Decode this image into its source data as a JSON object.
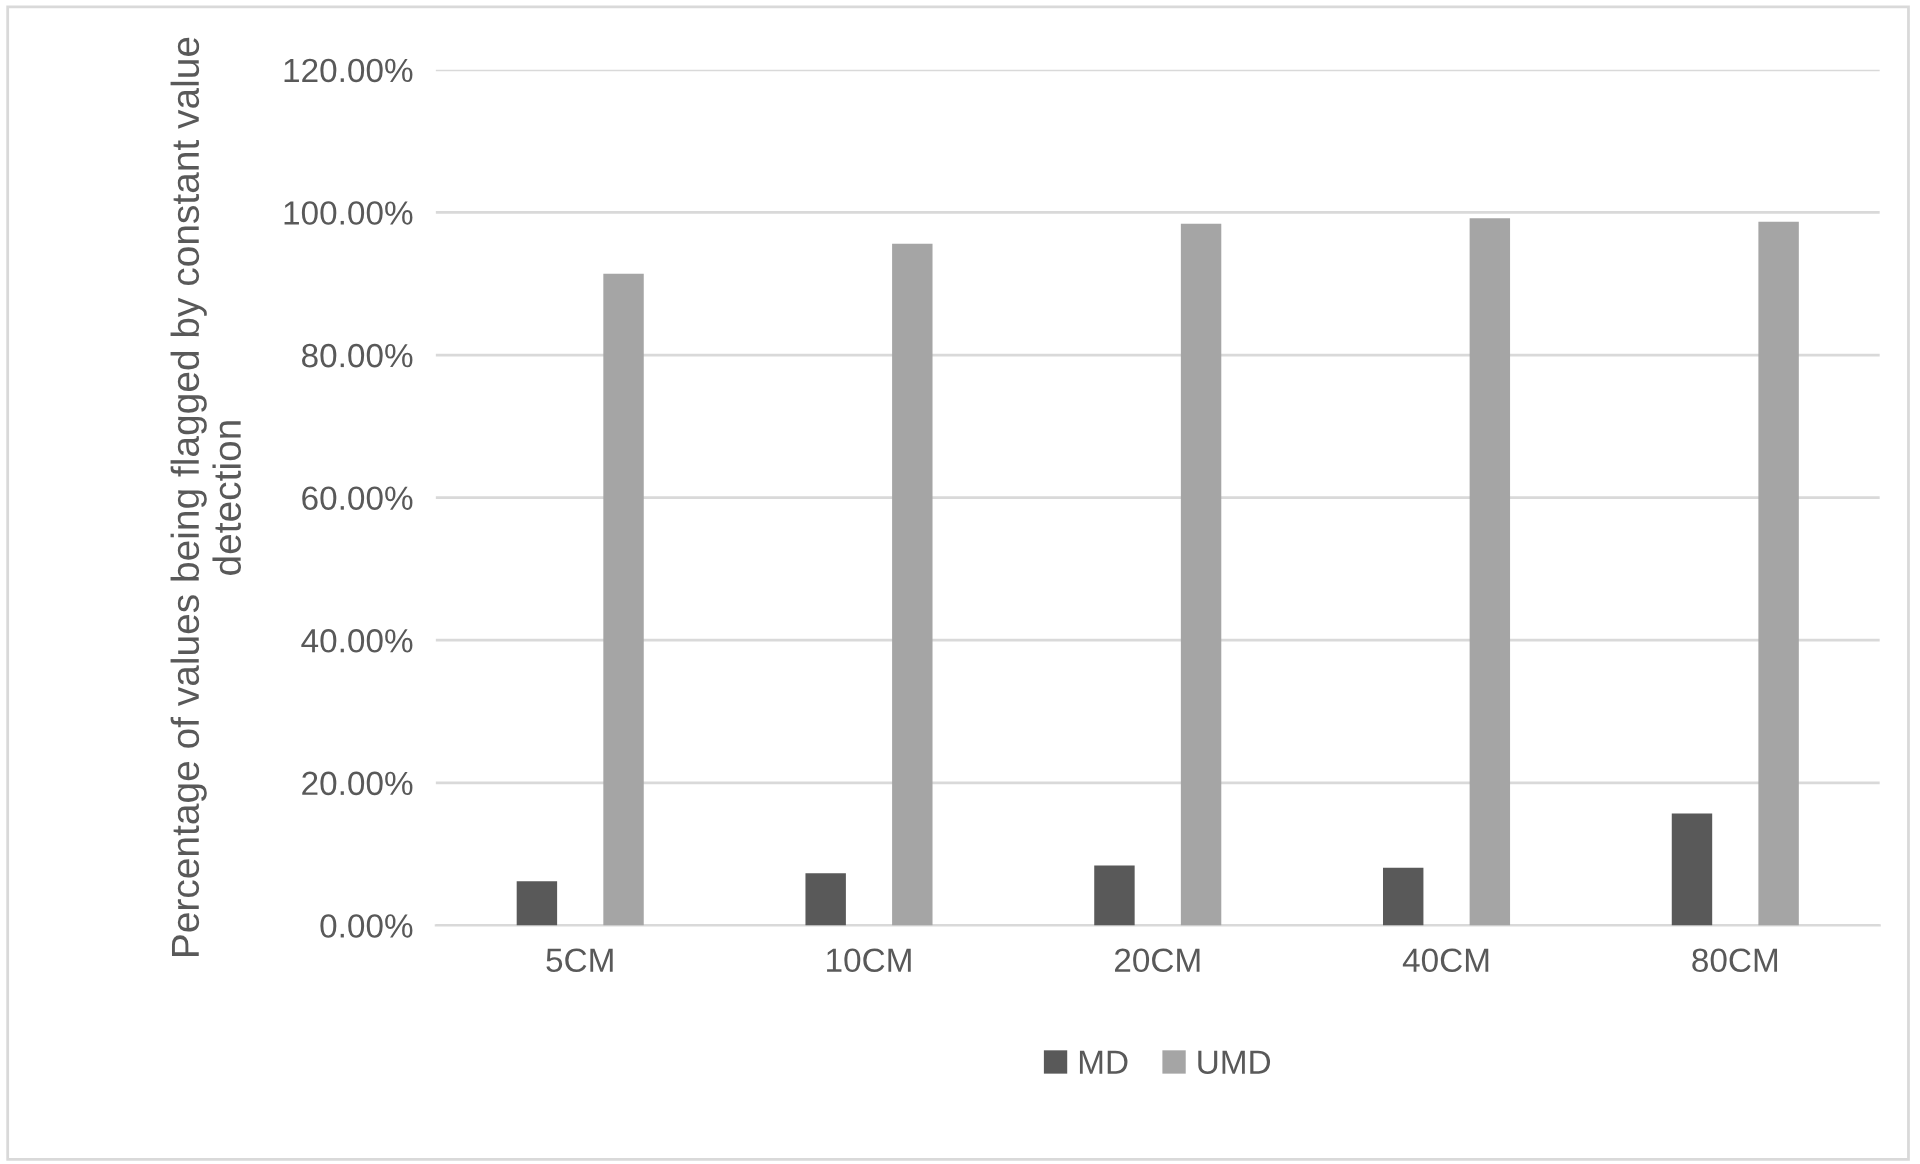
{
  "chart_data": {
    "type": "bar",
    "ylabel": "Percentage of values being flagged by constant value detection",
    "categories": [
      "5CM",
      "10CM",
      "20CM",
      "40CM",
      "80CM"
    ],
    "series": [
      {
        "name": "MD",
        "color": "#595959",
        "values": [
          6.2,
          7.3,
          8.4,
          8.1,
          15.7
        ]
      },
      {
        "name": "UMD",
        "color": "#a5a5a5",
        "values": [
          91.4,
          95.6,
          98.4,
          99.2,
          98.7
        ]
      }
    ],
    "ylim": [
      0,
      120
    ],
    "yticks": [
      {
        "value": 0,
        "label": "0.00%"
      },
      {
        "value": 20,
        "label": "20.00%"
      },
      {
        "value": 40,
        "label": "40.00%"
      },
      {
        "value": 60,
        "label": "60.00%"
      },
      {
        "value": 80,
        "label": "80.00%"
      },
      {
        "value": 100,
        "label": "100.00%"
      },
      {
        "value": 120,
        "label": "120.00%"
      }
    ],
    "grid": "y",
    "legend": "bottom"
  }
}
